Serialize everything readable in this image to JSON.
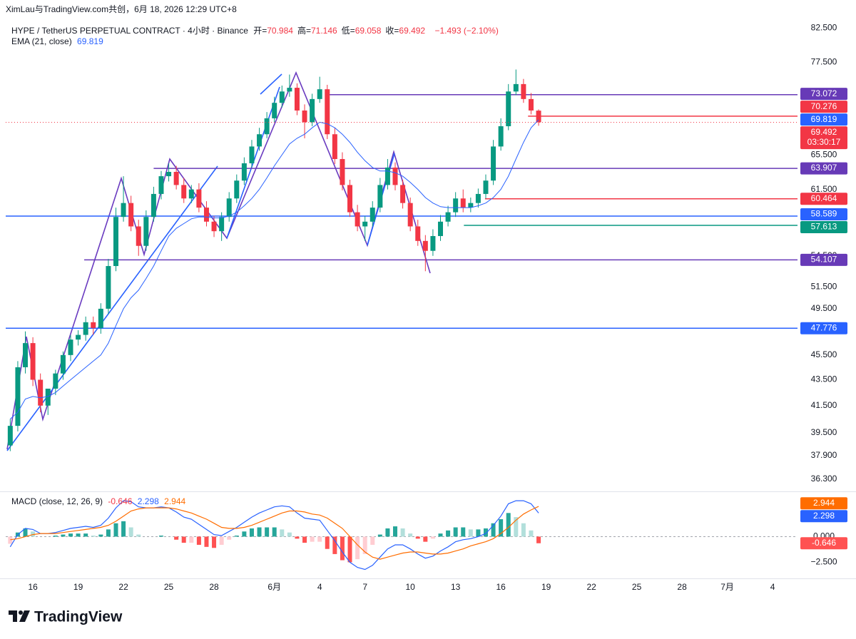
{
  "header": {
    "attribution": "XimLau与TradingView.com共创，6月 18, 2026 12:29 UTC+8",
    "symbol": "HYPE / TetherUS PERPETUAL CONTRACT · 4小时 · Binance",
    "ohlc": [
      [
        "开=",
        "70.984"
      ],
      [
        "高=",
        "71.146"
      ],
      [
        "低=",
        "69.058"
      ],
      [
        "收=",
        "69.492"
      ]
    ],
    "change": "−1.493 (−2.10%)"
  },
  "chart_data": [
    {
      "type": "candlestick",
      "log_scale": true,
      "grid": false,
      "xlim": [
        -0.6,
        104.3
      ],
      "ylim": [
        35.55,
        83.5
      ],
      "xticks": [
        {
          "value": 3,
          "label": "16"
        },
        {
          "value": 9,
          "label": "19"
        },
        {
          "value": 15,
          "label": "22"
        },
        {
          "value": 21,
          "label": "25"
        },
        {
          "value": 27,
          "label": "28"
        },
        {
          "value": 35,
          "label": "6月"
        },
        {
          "value": 41,
          "label": "4"
        },
        {
          "value": 47,
          "label": "7"
        },
        {
          "value": 53,
          "label": "10"
        },
        {
          "value": 59,
          "label": "13"
        },
        {
          "value": 65,
          "label": "16"
        },
        {
          "value": 71,
          "label": "19"
        },
        {
          "value": 77,
          "label": "22"
        },
        {
          "value": 83,
          "label": "25"
        },
        {
          "value": 89,
          "label": "28"
        },
        {
          "value": 95,
          "label": "7月"
        },
        {
          "value": 101,
          "label": "4"
        }
      ],
      "yticks": [
        {
          "value": 82.5,
          "label": "82.500"
        },
        {
          "value": 77.5,
          "label": "77.500"
        },
        {
          "value": 65.5,
          "label": "65.500"
        },
        {
          "value": 61.5,
          "label": "61.500"
        },
        {
          "value": 54.5,
          "label": "54.500"
        },
        {
          "value": 51.5,
          "label": "51.500"
        },
        {
          "value": 49.5,
          "label": "49.500"
        },
        {
          "value": 45.5,
          "label": "45.500"
        },
        {
          "value": 43.5,
          "label": "43.500"
        },
        {
          "value": 41.5,
          "label": "41.500"
        },
        {
          "value": 39.5,
          "label": "39.500"
        },
        {
          "value": 37.9,
          "label": "37.900"
        },
        {
          "value": 36.3,
          "label": "36.300"
        }
      ],
      "up_color": "#089981",
      "down_color": "#f23645",
      "open": [
        38.6,
        40.0,
        44.5,
        46.5,
        43.5,
        41.5,
        42.8,
        44.0,
        45.5,
        46.8,
        47.2,
        48.3,
        47.8,
        49.5,
        53.5,
        58.5,
        60.0,
        57.5,
        55.5,
        58.5,
        61.0,
        63.0,
        63.5,
        62.0,
        60.5,
        61.5,
        59.5,
        58.0,
        57.0,
        58.5,
        60.5,
        62.5,
        64.5,
        66.5,
        68.0,
        70.0,
        72.0,
        73.5,
        74.0,
        71.0,
        69.5,
        72.5,
        73.8,
        68.0,
        65.0,
        62.0,
        59.0,
        57.5,
        58.0,
        59.5,
        62.0,
        64.0,
        62.0,
        60.0,
        57.5,
        56.0,
        55.0,
        56.5,
        58.0,
        59.0,
        60.5,
        59.5,
        60.0,
        61.0,
        62.5,
        66.5,
        69.0,
        73.5,
        74.5,
        72.5,
        70.984
      ],
      "high": [
        40.5,
        45.0,
        47.5,
        47.0,
        44.0,
        42.5,
        44.3,
        45.8,
        47.2,
        47.6,
        48.8,
        48.8,
        50.0,
        54.2,
        59.5,
        63.0,
        60.8,
        58.2,
        59.2,
        61.8,
        63.6,
        64.5,
        64.2,
        62.8,
        62.0,
        62.2,
        60.2,
        58.6,
        59.0,
        61.2,
        63.2,
        65.2,
        67.3,
        68.8,
        70.8,
        72.8,
        74.3,
        75.8,
        74.6,
        71.8,
        73.2,
        75.5,
        74.4,
        68.8,
        65.8,
        62.6,
        59.8,
        58.6,
        60.2,
        62.8,
        65.0,
        64.6,
        62.6,
        60.6,
        58.2,
        56.6,
        57.2,
        58.7,
        59.7,
        61.2,
        61.5,
        60.6,
        61.6,
        63.2,
        67.3,
        70.0,
        74.5,
        76.5,
        75.2,
        73.3,
        71.146
      ],
      "low": [
        38.2,
        39.6,
        44.0,
        43.0,
        41.0,
        40.8,
        42.3,
        43.5,
        45.0,
        46.3,
        46.7,
        47.2,
        47.3,
        49.0,
        53.0,
        58.0,
        57.0,
        54.5,
        55.0,
        58.0,
        60.4,
        62.4,
        61.5,
        60.0,
        60.0,
        59.0,
        57.5,
        56.4,
        56.0,
        58.0,
        60.0,
        62.0,
        64.0,
        66.0,
        67.5,
        69.5,
        71.4,
        72.8,
        70.4,
        67.5,
        69.0,
        72.0,
        67.4,
        64.4,
        61.4,
        58.5,
        57.0,
        56.0,
        57.5,
        59.0,
        61.5,
        61.4,
        59.4,
        57.0,
        55.5,
        53.0,
        54.5,
        56.0,
        57.5,
        58.5,
        59.0,
        59.0,
        59.5,
        60.5,
        62.0,
        66.0,
        68.5,
        73.0,
        72.0,
        70.5,
        69.058
      ],
      "close": [
        40.0,
        44.5,
        46.5,
        43.5,
        41.5,
        42.8,
        44.0,
        45.5,
        46.8,
        47.2,
        48.3,
        47.8,
        49.5,
        53.5,
        58.5,
        60.0,
        57.5,
        55.5,
        58.5,
        61.0,
        63.0,
        63.5,
        62.0,
        60.5,
        61.5,
        59.5,
        58.0,
        57.0,
        58.5,
        60.5,
        62.5,
        64.5,
        66.5,
        68.0,
        70.0,
        72.0,
        73.5,
        74.0,
        71.0,
        69.5,
        72.5,
        73.8,
        68.0,
        65.0,
        62.0,
        59.0,
        57.5,
        58.0,
        59.5,
        62.0,
        64.0,
        62.0,
        60.0,
        57.5,
        56.0,
        55.0,
        56.5,
        58.0,
        59.0,
        60.5,
        59.5,
        60.0,
        61.0,
        62.5,
        66.5,
        69.0,
        73.5,
        74.5,
        72.5,
        71.0,
        69.492
      ],
      "countdown": "03:30:17",
      "ema": {
        "name": "EMA (21, close)",
        "color": "#2962ff",
        "values": [
          40.5,
          41.0,
          42.0,
          42.2,
          42.1,
          42.2,
          42.5,
          43.0,
          43.5,
          44.0,
          44.5,
          45.0,
          45.5,
          46.5,
          48.0,
          49.5,
          50.5,
          51.2,
          52.3,
          53.5,
          55.0,
          56.5,
          57.3,
          57.8,
          58.3,
          58.5,
          58.5,
          58.4,
          58.4,
          58.6,
          59.0,
          59.7,
          60.5,
          61.5,
          62.8,
          64.2,
          65.5,
          66.8,
          67.5,
          68.0,
          68.8,
          69.5,
          69.3,
          68.8,
          68.0,
          67.0,
          65.8,
          64.8,
          64.0,
          63.6,
          63.6,
          63.4,
          63.0,
          62.3,
          61.5,
          60.6,
          60.0,
          59.6,
          59.5,
          59.5,
          59.5,
          59.5,
          59.7,
          60.0,
          60.6,
          61.5,
          63.0,
          65.0,
          67.0,
          68.8,
          69.819
        ]
      },
      "levels": [
        {
          "value": 73.072,
          "color": "#673ab7",
          "start": 42.1
        },
        {
          "value": 70.276,
          "color": "#f23645",
          "start": 68.6
        },
        {
          "value": 63.907,
          "color": "#673ab7",
          "start": 19
        },
        {
          "value": 60.464,
          "color": "#f23645",
          "start": 62.9
        },
        {
          "value": 58.589,
          "color": "#2962ff"
        },
        {
          "value": 57.613,
          "color": "#089981",
          "start": 60.1
        },
        {
          "value": 54.107,
          "color": "#673ab7",
          "start": 9.8
        },
        {
          "value": 47.776,
          "color": "#2962ff"
        }
      ]
    },
    {
      "type": "macd",
      "title": "MACD (close, 12, 26, 9)",
      "ylim": [
        -4.0,
        4.2
      ],
      "yticks": [
        {
          "value": 0,
          "label": "0.000"
        },
        {
          "value": -2.5,
          "label": "−2.500"
        }
      ],
      "histogram": {
        "colors": {
          "up_strong": "#26a69a",
          "up_weak": "#b2dfdb",
          "down_strong": "#ff5252",
          "down_weak": "#ffcdd2"
        },
        "values": [
          -0.7,
          0.4,
          0.8,
          0.5,
          0.0,
          0.0,
          0.1,
          0.2,
          0.3,
          0.3,
          0.3,
          0.1,
          0.2,
          0.7,
          1.3,
          1.5,
          0.9,
          0.2,
          0.0,
          0.0,
          0.1,
          0.0,
          -0.3,
          -0.6,
          -0.6,
          -0.8,
          -1.0,
          -1.1,
          -0.8,
          -0.3,
          0.1,
          0.5,
          0.8,
          0.9,
          0.9,
          0.9,
          0.7,
          0.4,
          -0.2,
          -0.6,
          -0.5,
          -0.5,
          -1.2,
          -1.7,
          -2.3,
          -2.5,
          -2.2,
          -1.7,
          -0.8,
          0.2,
          0.8,
          1.0,
          0.8,
          0.3,
          -0.2,
          -0.5,
          -0.2,
          0.3,
          0.6,
          0.9,
          0.9,
          0.7,
          0.7,
          0.8,
          1.3,
          1.7,
          2.3,
          1.9,
          1.3,
          0.6,
          -0.646
        ]
      },
      "macd": {
        "color": "#2962ff",
        "values": [
          -1.0,
          0.2,
          0.8,
          0.7,
          0.3,
          0.3,
          0.4,
          0.6,
          0.8,
          0.9,
          1.0,
          0.9,
          1.1,
          1.8,
          2.8,
          3.5,
          3.4,
          2.9,
          2.8,
          2.8,
          2.9,
          2.8,
          2.4,
          1.9,
          1.7,
          1.2,
          0.7,
          0.2,
          0.1,
          0.5,
          0.9,
          1.4,
          1.9,
          2.3,
          2.6,
          2.9,
          3.0,
          2.9,
          2.3,
          1.8,
          1.7,
          1.6,
          0.6,
          -0.4,
          -1.5,
          -2.5,
          -3.0,
          -3.2,
          -2.8,
          -2.0,
          -1.2,
          -0.8,
          -0.8,
          -1.2,
          -1.7,
          -2.1,
          -1.9,
          -1.4,
          -1.0,
          -0.5,
          -0.3,
          -0.2,
          0.0,
          0.3,
          1.1,
          2.0,
          3.2,
          3.5,
          3.5,
          3.2,
          2.298
        ]
      },
      "signal": {
        "color": "#ff6d00",
        "values": [
          -0.3,
          -0.2,
          0.0,
          0.2,
          0.3,
          0.3,
          0.3,
          0.4,
          0.5,
          0.6,
          0.7,
          0.8,
          0.9,
          1.1,
          1.5,
          2.0,
          2.5,
          2.7,
          2.8,
          2.8,
          2.8,
          2.8,
          2.7,
          2.5,
          2.3,
          2.0,
          1.7,
          1.3,
          0.9,
          0.8,
          0.8,
          0.9,
          1.1,
          1.4,
          1.7,
          2.0,
          2.3,
          2.5,
          2.5,
          2.4,
          2.2,
          2.1,
          1.8,
          1.3,
          0.8,
          0.0,
          -0.8,
          -1.5,
          -2.0,
          -2.2,
          -2.0,
          -1.8,
          -1.6,
          -1.5,
          -1.5,
          -1.6,
          -1.7,
          -1.7,
          -1.6,
          -1.4,
          -1.2,
          -0.9,
          -0.7,
          -0.5,
          -0.2,
          0.3,
          0.9,
          1.6,
          2.2,
          2.6,
          2.944
        ]
      }
    }
  ],
  "footer": {
    "brand": "TradingView"
  }
}
